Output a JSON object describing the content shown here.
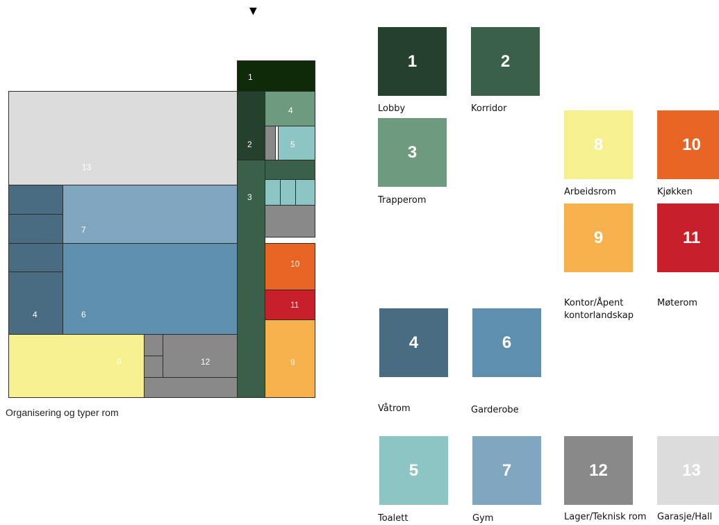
{
  "north_marker": "▼",
  "plan_caption": "Organisering og typer rom",
  "plan_labels": {
    "lobby": "1",
    "corridor": "2",
    "stair": "3",
    "wet": "4",
    "toilet": "5",
    "cloak": "6",
    "gym": "7",
    "work": "8",
    "office": "9",
    "kitchen": "10",
    "meeting": "11",
    "storage": "12",
    "garage": "13"
  },
  "colors": {
    "lobby": "#26402e",
    "corridor": "#3a6049",
    "stair": "#6e9a80",
    "wet": "#4a6c83",
    "toilet": "#8dc5c5",
    "cloak": "#5f8fae",
    "gym": "#80a7bf",
    "work": "#f6f08f",
    "office": "#f6b04c",
    "kitchen": "#e86425",
    "meeting": "#c8202a",
    "storage": "#898989",
    "garage": "#dcdcdc",
    "plan_lobby": "#0f2a08"
  },
  "legend": [
    {
      "key": "lobby",
      "number": "1",
      "label": "Lobby"
    },
    {
      "key": "corridor",
      "number": "2",
      "label": "Korridor"
    },
    {
      "key": "stair",
      "number": "3",
      "label": "Trapperom"
    },
    {
      "key": "work",
      "number": "8",
      "label": "Arbeidsrom"
    },
    {
      "key": "kitchen",
      "number": "10",
      "label": "Kjøkken"
    },
    {
      "key": "office",
      "number": "9",
      "label": "Kontor/Åpent\nkontorlandskap"
    },
    {
      "key": "meeting",
      "number": "11",
      "label": "Møterom"
    },
    {
      "key": "wet",
      "number": "4",
      "label": "Våtrom"
    },
    {
      "key": "cloak",
      "number": "6",
      "label": "Garderobe"
    },
    {
      "key": "toilet",
      "number": "5",
      "label": "Toalett"
    },
    {
      "key": "gym",
      "number": "7",
      "label": "Gym"
    },
    {
      "key": "storage",
      "number": "12",
      "label": "Lager/Teknisk rom"
    },
    {
      "key": "garage",
      "number": "13",
      "label": "Garasje/Hall"
    }
  ]
}
